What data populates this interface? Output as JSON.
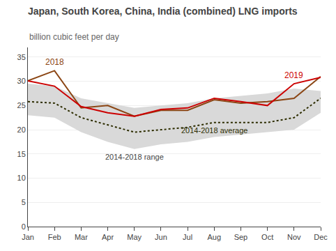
{
  "chart_data": {
    "type": "line",
    "title": "Japan, South Korea, China, India (combined) LNG imports",
    "subtitle": "billion cubic feet per day",
    "categories": [
      "Jan",
      "Feb",
      "Mar",
      "Apr",
      "May",
      "Jun",
      "Jul",
      "Aug",
      "Sep",
      "Oct",
      "Nov",
      "Dec"
    ],
    "series": [
      {
        "name": "2014-2018 range",
        "type": "range",
        "color": "#d9d9d9",
        "low": [
          23.0,
          22.5,
          19.5,
          17.5,
          16.0,
          17.0,
          17.5,
          18.5,
          19.0,
          19.5,
          20.0,
          23.5
        ],
        "high": [
          29.5,
          29.0,
          26.5,
          25.5,
          24.5,
          25.0,
          25.5,
          26.5,
          27.0,
          27.5,
          28.5,
          28.0
        ]
      },
      {
        "name": "2014-2018 average",
        "type": "line",
        "color": "#2d2d00",
        "line_style": "dotted",
        "values": [
          25.8,
          25.5,
          22.5,
          21.0,
          19.5,
          20.0,
          20.5,
          21.5,
          21.5,
          21.5,
          22.5,
          26.5
        ]
      },
      {
        "name": "2018",
        "type": "line",
        "color": "#8B4513",
        "line_style": "solid",
        "values": [
          30.1,
          32.2,
          24.5,
          25.0,
          22.8,
          24.0,
          24.0,
          26.2,
          25.5,
          25.8,
          26.5,
          31.0
        ]
      },
      {
        "name": "2019",
        "type": "line",
        "color": "#cc0000",
        "line_style": "solid",
        "values": [
          30.1,
          29.0,
          24.8,
          23.5,
          22.8,
          24.2,
          24.5,
          26.5,
          25.8,
          25.0,
          29.5,
          30.8
        ]
      }
    ],
    "ylim": [
      0,
      37
    ],
    "yticks": [
      0,
      5,
      10,
      15,
      20,
      25,
      30,
      35
    ],
    "grid": true
  }
}
